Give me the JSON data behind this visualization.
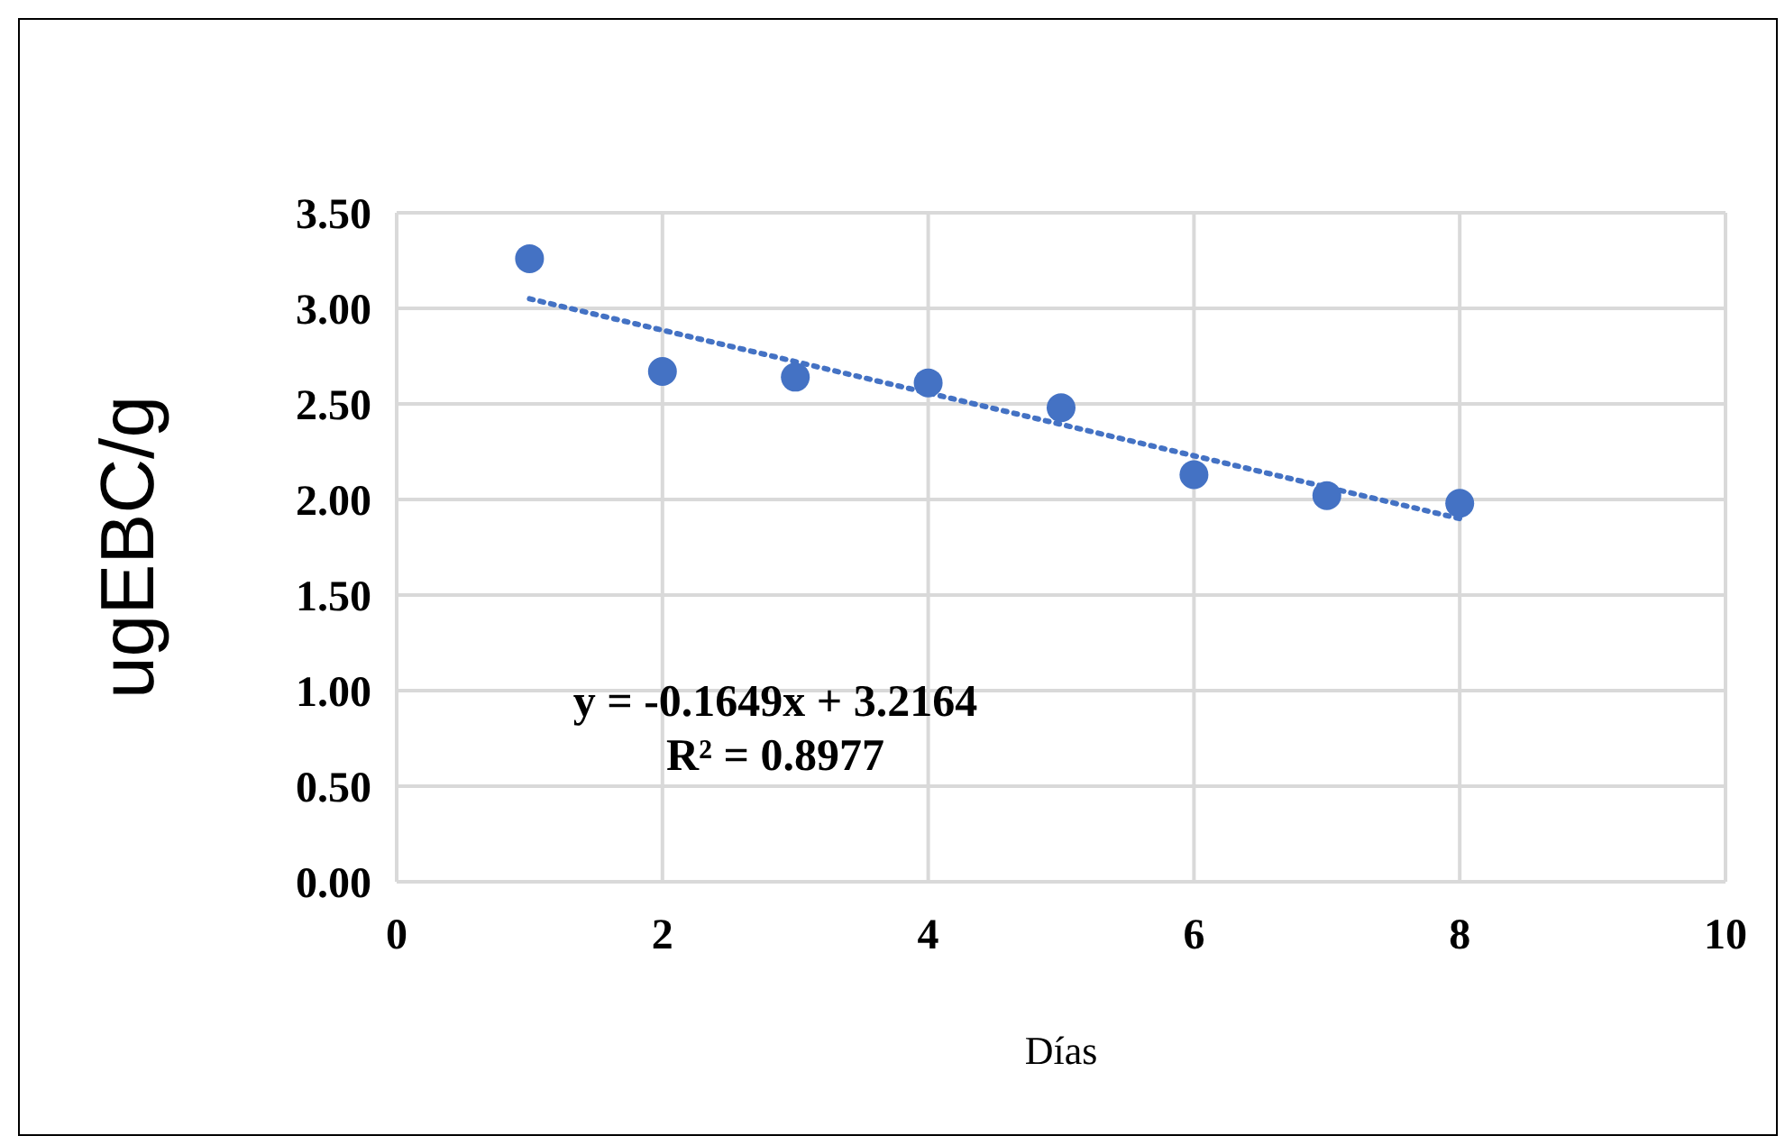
{
  "chart_data": {
    "type": "scatter",
    "xlabel": "Días",
    "ylabel": "ugEBC/g",
    "xlim": [
      0,
      10
    ],
    "xticks": [
      0,
      2,
      4,
      6,
      8,
      10
    ],
    "ylim": [
      0,
      3.5
    ],
    "yticks": [
      {
        "value": 0,
        "label": "0.00"
      },
      {
        "value": 0.5,
        "label": "0.50"
      },
      {
        "value": 1,
        "label": "1.00"
      },
      {
        "value": 1.5,
        "label": "1.50"
      },
      {
        "value": 2,
        "label": "2.00"
      },
      {
        "value": 2.5,
        "label": "2.50"
      },
      {
        "value": 3,
        "label": "3.00"
      },
      {
        "value": 3.5,
        "label": "3.50"
      }
    ],
    "grid": true,
    "legend": false,
    "marker": "circle",
    "series": [
      {
        "color": "#4472c4",
        "x": [
          1,
          2,
          3,
          4,
          5,
          6,
          7,
          8
        ],
        "values": [
          3.26,
          2.67,
          2.64,
          2.61,
          2.48,
          2.13,
          2.02,
          1.98
        ]
      },
      {
        "type": "line",
        "color": "#4472c4",
        "line_style": "dotted",
        "marker": "none",
        "x": [
          1,
          8
        ],
        "values": [
          3.05,
          1.9
        ]
      }
    ],
    "annotations": [
      "y = -0.1649x + 3.2164",
      "R² = 0.8977"
    ]
  }
}
